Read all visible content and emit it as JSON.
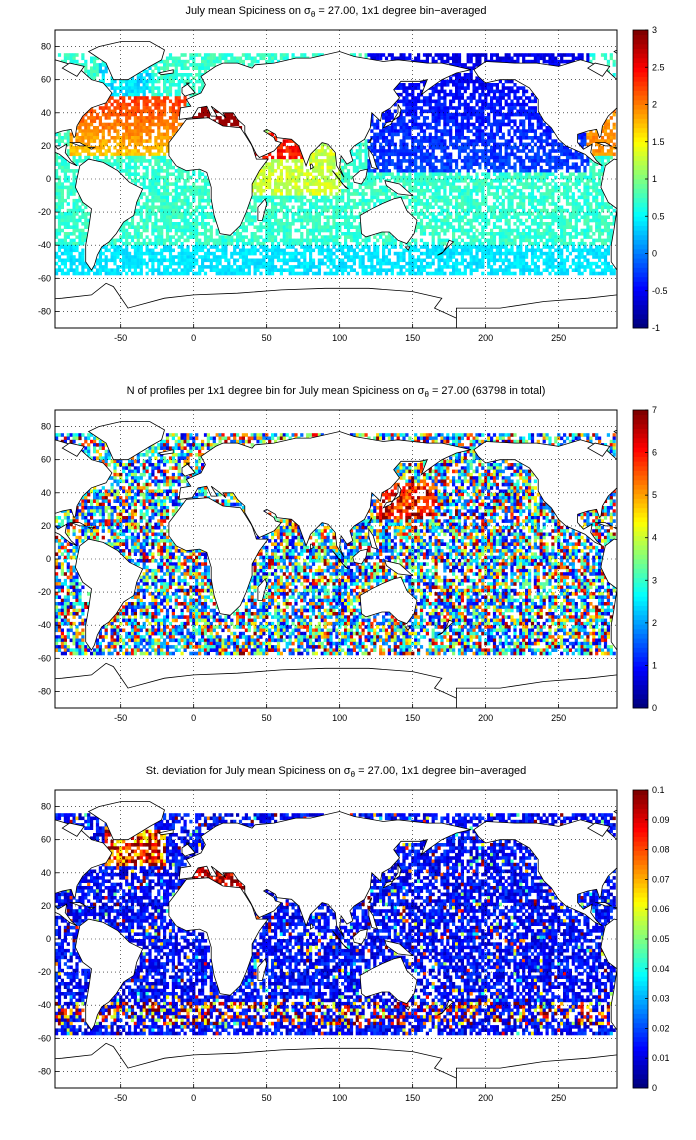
{
  "panels": [
    {
      "title_pre": "July mean Spiciness on σ",
      "title_sub": "θ",
      "title_post": " = 27.00, 1x1 degree bin−averaged",
      "colorbar": {
        "min": -1,
        "max": 3,
        "ticks": [
          "-1",
          "-0.5",
          "0",
          "0.5",
          "1",
          "1.5",
          "2",
          "2.5",
          "3"
        ],
        "colormap": "jet"
      },
      "field": "spiciness"
    },
    {
      "title_pre": "N of profiles per 1x1 degree bin for July mean Spiciness on σ",
      "title_sub": "θ",
      "title_post": " = 27.00 (63798 in total)",
      "colorbar": {
        "min": 0,
        "max": 7,
        "ticks": [
          "0",
          "1",
          "2",
          "3",
          "4",
          "5",
          "6",
          "7"
        ],
        "colormap": "jet"
      },
      "field": "count"
    },
    {
      "title_pre": "St. deviation for July mean Spiciness on σ",
      "title_sub": "θ",
      "title_post": " = 27.00, 1x1 degree bin−averaged",
      "colorbar": {
        "min": 0,
        "max": 0.1,
        "ticks": [
          "0",
          "0.01",
          "0.02",
          "0.03",
          "0.04",
          "0.05",
          "0.06",
          "0.07",
          "0.08",
          "0.09",
          "0.1"
        ],
        "colormap": "jet"
      },
      "field": "stdev"
    }
  ],
  "axes": {
    "x_range": [
      -95,
      290
    ],
    "y_range": [
      -90,
      90
    ],
    "x_ticks": [
      "-50",
      "0",
      "50",
      "100",
      "150",
      "200",
      "250"
    ],
    "y_ticks": [
      "-80",
      "-60",
      "-40",
      "-20",
      "0",
      "20",
      "40",
      "60",
      "80"
    ],
    "grid": "dotted"
  }
}
